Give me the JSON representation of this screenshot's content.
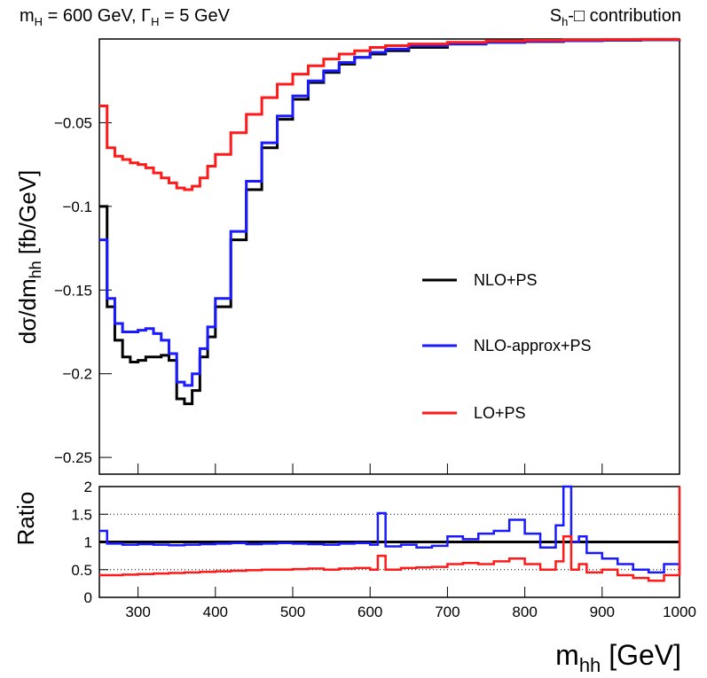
{
  "chart_data": [
    {
      "type": "line",
      "title_left": {
        "base": "m",
        "sub": "H",
        "mid": " = 600 GeV, ",
        "greek": "Γ",
        "sub2": "H",
        "tail": " = 5 GeV"
      },
      "title_right": {
        "base": "S",
        "sub": "h",
        "tail": "-□ contribution"
      },
      "xlabel": {
        "base": "m",
        "sub": "hh",
        "tail": " [GeV]"
      },
      "ylabel": {
        "base": "dσ/dm",
        "sub": "hh",
        "tail": " [fb/GeV]"
      },
      "xlim": [
        250,
        1000
      ],
      "ylim": [
        -0.26,
        0.0
      ],
      "yticks": [
        "−0.05",
        "−0.1",
        "−0.15",
        "−0.2",
        "−0.25"
      ],
      "yticks_values": [
        -0.05,
        -0.1,
        -0.15,
        -0.2,
        -0.25
      ],
      "legend": [
        {
          "label": "NLO+PS",
          "color": "#000000"
        },
        {
          "label": "NLO-approx+PS",
          "color": "#1a1aff"
        },
        {
          "label": "LO+PS",
          "color": "#ff1a1a"
        }
      ],
      "x": [
        250,
        260,
        270,
        280,
        290,
        300,
        310,
        320,
        330,
        340,
        350,
        360,
        370,
        380,
        390,
        400,
        420,
        440,
        460,
        480,
        500,
        520,
        540,
        560,
        580,
        600,
        620,
        650,
        700,
        750,
        800,
        850,
        900,
        950,
        1000
      ],
      "series": [
        {
          "name": "NLO+PS",
          "color": "#000000",
          "values": [
            -0.1,
            -0.16,
            -0.18,
            -0.19,
            -0.193,
            -0.192,
            -0.19,
            -0.19,
            -0.189,
            -0.192,
            -0.215,
            -0.218,
            -0.21,
            -0.19,
            -0.178,
            -0.16,
            -0.12,
            -0.09,
            -0.065,
            -0.048,
            -0.036,
            -0.026,
            -0.02,
            -0.015,
            -0.011,
            -0.009,
            -0.007,
            -0.005,
            -0.003,
            -0.002,
            -0.0015,
            -0.001,
            -0.0008,
            -0.0005,
            -0.0003
          ]
        },
        {
          "name": "NLO-approx+PS",
          "color": "#1a1aff",
          "values": [
            -0.12,
            -0.155,
            -0.17,
            -0.175,
            -0.175,
            -0.174,
            -0.173,
            -0.176,
            -0.18,
            -0.188,
            -0.205,
            -0.207,
            -0.2,
            -0.185,
            -0.172,
            -0.155,
            -0.115,
            -0.085,
            -0.062,
            -0.046,
            -0.034,
            -0.025,
            -0.019,
            -0.014,
            -0.011,
            -0.008,
            -0.006,
            -0.004,
            -0.003,
            -0.002,
            -0.0014,
            -0.001,
            -0.0008,
            -0.0005,
            -0.0003
          ]
        },
        {
          "name": "LO+PS",
          "color": "#ff1a1a",
          "values": [
            -0.04,
            -0.065,
            -0.07,
            -0.072,
            -0.074,
            -0.075,
            -0.077,
            -0.08,
            -0.083,
            -0.086,
            -0.089,
            -0.09,
            -0.088,
            -0.083,
            -0.076,
            -0.069,
            -0.056,
            -0.045,
            -0.035,
            -0.027,
            -0.021,
            -0.016,
            -0.012,
            -0.009,
            -0.007,
            -0.005,
            -0.004,
            -0.003,
            -0.002,
            -0.0012,
            -0.0008,
            -0.0005,
            -0.0003,
            -0.0002,
            -0.0001
          ]
        }
      ]
    },
    {
      "type": "line",
      "xlabel": "",
      "ylabel": "Ratio",
      "xlim": [
        250,
        1000
      ],
      "ylim": [
        0,
        2
      ],
      "xticks": [
        "300",
        "400",
        "500",
        "600",
        "700",
        "800",
        "900",
        "1000"
      ],
      "xticks_values": [
        300,
        400,
        500,
        600,
        700,
        800,
        900,
        1000
      ],
      "yticks": [
        "0",
        "0.5",
        "1",
        "1.5",
        "2"
      ],
      "yticks_values": [
        0,
        0.5,
        1,
        1.5,
        2
      ],
      "reference_lines": [
        0.5,
        1.5
      ],
      "x": [
        250,
        260,
        280,
        300,
        320,
        340,
        360,
        380,
        400,
        420,
        440,
        460,
        480,
        500,
        520,
        540,
        560,
        580,
        600,
        610,
        620,
        640,
        660,
        680,
        700,
        720,
        740,
        760,
        780,
        800,
        820,
        840,
        850,
        860,
        870,
        880,
        900,
        920,
        940,
        960,
        980,
        1000
      ],
      "series": [
        {
          "name": "NLO+PS",
          "color": "#000000",
          "values": [
            1.0,
            1.0,
            1.0,
            1.0,
            1.0,
            1.0,
            1.0,
            1.0,
            1.0,
            1.0,
            1.0,
            1.0,
            1.0,
            1.0,
            1.0,
            1.0,
            1.0,
            1.0,
            1.0,
            1.0,
            1.0,
            1.0,
            1.0,
            1.0,
            1.0,
            1.0,
            1.0,
            1.0,
            1.0,
            1.0,
            1.0,
            1.0,
            1.0,
            1.0,
            1.0,
            1.0,
            1.0,
            1.0,
            1.0,
            1.0,
            1.0,
            1.0
          ]
        },
        {
          "name": "NLO-approx+PS",
          "color": "#1a1aff",
          "values": [
            1.2,
            0.97,
            0.95,
            0.96,
            0.95,
            0.94,
            0.95,
            0.96,
            0.97,
            0.98,
            0.96,
            0.97,
            0.98,
            0.97,
            0.96,
            0.95,
            0.97,
            0.98,
            0.95,
            1.52,
            0.92,
            0.95,
            0.9,
            0.93,
            1.1,
            1.05,
            1.15,
            1.2,
            1.4,
            1.15,
            0.9,
            1.3,
            2.0,
            1.0,
            1.1,
            0.8,
            0.7,
            0.6,
            0.5,
            0.45,
            0.6,
            0.5
          ]
        },
        {
          "name": "LO+PS",
          "color": "#ff1a1a",
          "values": [
            0.4,
            0.4,
            0.41,
            0.42,
            0.43,
            0.44,
            0.45,
            0.46,
            0.47,
            0.48,
            0.49,
            0.5,
            0.5,
            0.51,
            0.52,
            0.5,
            0.52,
            0.53,
            0.5,
            0.75,
            0.5,
            0.53,
            0.54,
            0.55,
            0.6,
            0.62,
            0.6,
            0.65,
            0.7,
            0.6,
            0.5,
            0.65,
            1.1,
            0.5,
            0.6,
            0.45,
            0.5,
            0.4,
            0.35,
            0.3,
            0.4,
            2.0
          ]
        }
      ]
    }
  ]
}
